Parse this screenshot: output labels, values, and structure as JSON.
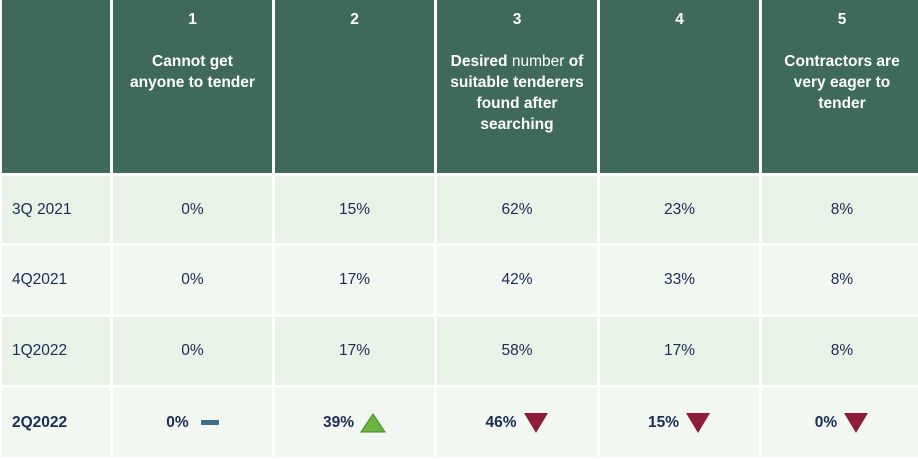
{
  "colors": {
    "header_bg": "#3f6a5a",
    "header_text": "#ffffff",
    "row_alt_1": "#e8f2e6",
    "row_alt_2": "#f2f8f1",
    "body_text": "#1d2b57",
    "up_arrow": "#6cb33f",
    "down_arrow": "#8c1d3b",
    "neutral_dash": "#3f6d8e"
  },
  "chart_data": {
    "type": "table",
    "columns": [
      {
        "number": "1",
        "label_bold": "Cannot get anyone to tender",
        "label_light": "",
        "label_tail": ""
      },
      {
        "number": "2",
        "label_bold": "",
        "label_light": "",
        "label_tail": ""
      },
      {
        "number": "3",
        "label_bold": "Desired ",
        "label_light": "number",
        "label_tail": " of suitable tenderers found after searching"
      },
      {
        "number": "4",
        "label_bold": "",
        "label_light": "",
        "label_tail": ""
      },
      {
        "number": "5",
        "label_bold": "Contractors are very eager to tender",
        "label_light": "",
        "label_tail": ""
      }
    ],
    "rows": [
      {
        "period": "3Q 2021",
        "values": [
          "0%",
          "15%",
          "62%",
          "23%",
          "8%"
        ]
      },
      {
        "period": "4Q2021",
        "values": [
          "0%",
          "17%",
          "42%",
          "33%",
          "8%"
        ]
      },
      {
        "period": "1Q2022",
        "values": [
          "0%",
          "17%",
          "58%",
          "17%",
          "8%"
        ]
      },
      {
        "period": "2Q2022",
        "values": [
          "0%",
          "39%",
          "46%",
          "15%",
          "0%"
        ],
        "changes": [
          "flat",
          "up",
          "down",
          "down",
          "down"
        ]
      }
    ]
  }
}
